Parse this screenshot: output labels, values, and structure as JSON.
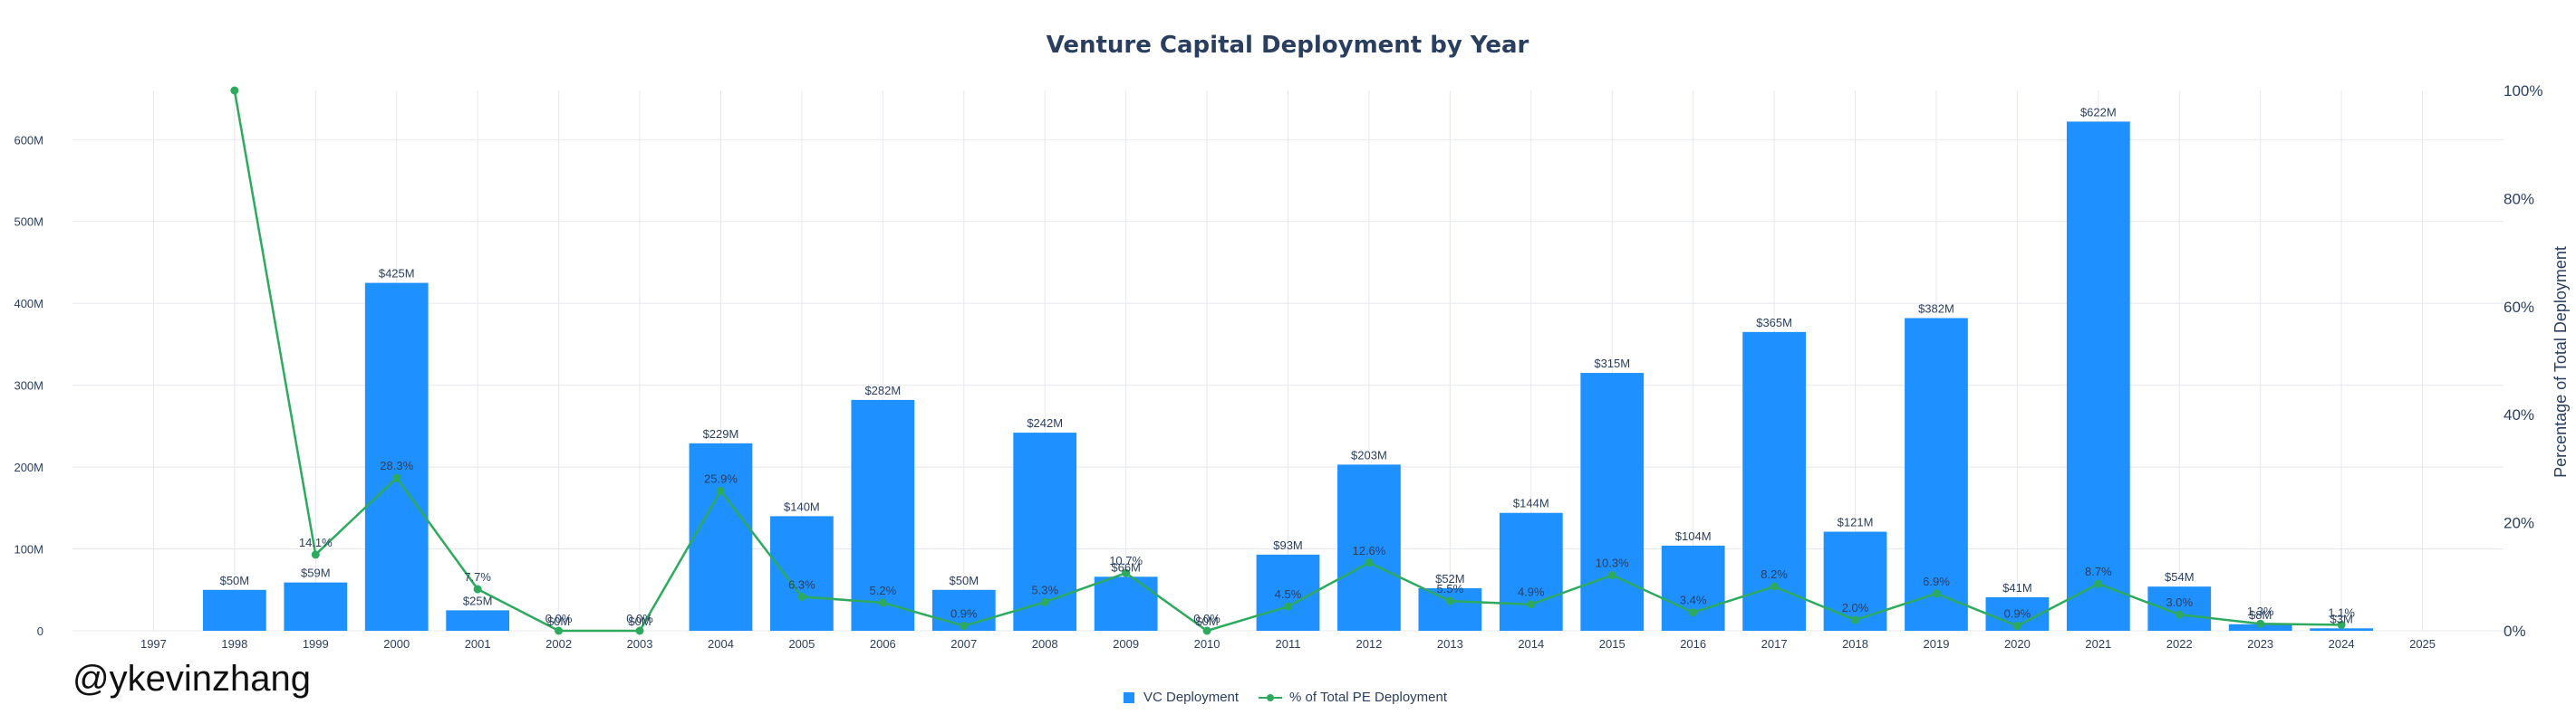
{
  "chart_data": {
    "type": "bar",
    "title": "Venture Capital Deployment by Year",
    "xlabel": "",
    "ylabel": "",
    "y2label": "Percentage of Total Deployment",
    "grid": true,
    "legend_position": "bottom-center",
    "x_ticks": [
      "1997",
      "1998",
      "1999",
      "2000",
      "2001",
      "2002",
      "2003",
      "2004",
      "2005",
      "2006",
      "2007",
      "2008",
      "2009",
      "2010",
      "2011",
      "2012",
      "2013",
      "2014",
      "2015",
      "2016",
      "2017",
      "2018",
      "2019",
      "2020",
      "2021",
      "2022",
      "2023",
      "2024",
      "2025"
    ],
    "y_ticks": [
      "0",
      "100M",
      "200M",
      "300M",
      "400M",
      "500M",
      "600M"
    ],
    "y2_ticks": [
      "0%",
      "20%",
      "40%",
      "60%",
      "80%",
      "100%"
    ],
    "ylim": [
      0,
      660
    ],
    "y2lim": [
      0,
      100
    ],
    "xlim": [
      1996.0,
      2026.0
    ],
    "colors": {
      "bar": "#1e90ff",
      "line": "#2eaa5e"
    },
    "series": [
      {
        "name": "VC Deployment",
        "type": "bar",
        "x": [
          1998,
          1999,
          2000,
          2001,
          2002,
          2003,
          2004,
          2005,
          2006,
          2007,
          2008,
          2009,
          2010,
          2011,
          2012,
          2013,
          2014,
          2015,
          2016,
          2017,
          2018,
          2019,
          2020,
          2021,
          2022,
          2023,
          2024
        ],
        "values": [
          50,
          59,
          425,
          25,
          0,
          0,
          229,
          140,
          282,
          50,
          242,
          66,
          0,
          93,
          203,
          52,
          144,
          315,
          104,
          365,
          121,
          382,
          41,
          622,
          54,
          8,
          3
        ],
        "labels": [
          "$50M",
          "$59M",
          "$425M",
          "$25M",
          "$0M",
          "$0M",
          "$229M",
          "$140M",
          "$282M",
          "$50M",
          "$242M",
          "$66M",
          "$0M",
          "$93M",
          "$203M",
          "$52M",
          "$144M",
          "$315M",
          "$104M",
          "$365M",
          "$121M",
          "$382M",
          "$41M",
          "$622M",
          "$54M",
          "$8M",
          "$3M"
        ]
      },
      {
        "name": "% of Total PE Deployment",
        "type": "line",
        "x": [
          1998,
          1999,
          2000,
          2001,
          2002,
          2003,
          2004,
          2005,
          2006,
          2007,
          2008,
          2009,
          2010,
          2011,
          2012,
          2013,
          2014,
          2015,
          2016,
          2017,
          2018,
          2019,
          2020,
          2021,
          2022,
          2023,
          2024
        ],
        "values": [
          100,
          14.1,
          28.3,
          7.7,
          0.0,
          0.0,
          25.9,
          6.3,
          5.2,
          0.9,
          5.3,
          10.7,
          0.0,
          4.5,
          12.6,
          5.5,
          4.9,
          10.3,
          3.4,
          8.2,
          2.0,
          6.9,
          0.9,
          8.7,
          3.0,
          1.3,
          1.1
        ],
        "labels": [
          "",
          "14.1%",
          "28.3%",
          "7.7%",
          "0.0%",
          "0.0%",
          "25.9%",
          "6.3%",
          "5.2%",
          "0.9%",
          "5.3%",
          "10.7%",
          "0.0%",
          "4.5%",
          "12.6%",
          "5.5%",
          "4.9%",
          "10.3%",
          "3.4%",
          "8.2%",
          "2.0%",
          "6.9%",
          "0.9%",
          "8.7%",
          "3.0%",
          "1.3%",
          "1.1%"
        ]
      }
    ]
  },
  "watermark": "@ykevinzhang"
}
